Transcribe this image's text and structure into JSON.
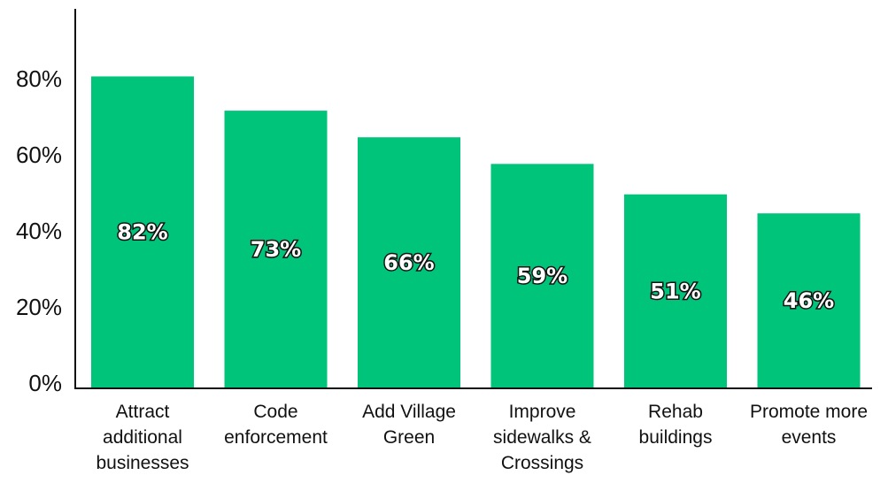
{
  "chart_data": {
    "type": "bar",
    "title": "",
    "xlabel": "",
    "ylabel": "",
    "ylim": [
      0,
      100
    ],
    "yticks": [
      0,
      20,
      40,
      60,
      80
    ],
    "ytick_labels": [
      "0%",
      "20%",
      "40%",
      "60%",
      "80%"
    ],
    "grid": false,
    "legend": "none",
    "bar_color": "#00c47a",
    "categories": [
      [
        "Attract",
        "additional",
        "businesses"
      ],
      [
        "Code",
        "enforcement"
      ],
      [
        "Add Village",
        "Green"
      ],
      [
        "Improve",
        "sidewalks &",
        "Crossings"
      ],
      [
        "Rehab",
        "buildings"
      ],
      [
        "Promote more",
        "events"
      ]
    ],
    "values": [
      82,
      73,
      66,
      59,
      51,
      46
    ],
    "data_labels": [
      "82%",
      "73%",
      "66%",
      "59%",
      "51%",
      "46%"
    ]
  }
}
